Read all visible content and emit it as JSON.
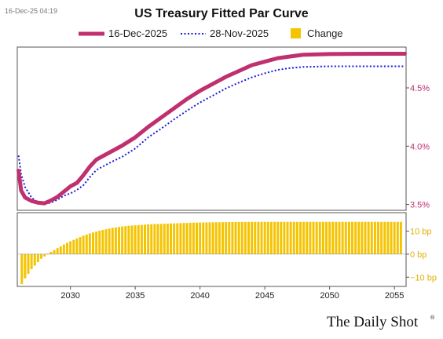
{
  "timestamp": "16-Dec-25 04:19",
  "brand": {
    "text": "The Daily Shot",
    "mark": "®"
  },
  "colors": {
    "current": "#c0306e",
    "prior": "#1a1adb",
    "change": "#f5c400",
    "axis_top": "#c0306e",
    "axis_bottom": "#e0b000"
  },
  "chart_data": {
    "type": "line",
    "title": "US Treasury Fitted Par Curve",
    "x_ticks": [
      2030,
      2035,
      2040,
      2045,
      2050,
      2055
    ],
    "xlim": [
      2025.9,
      2055.9
    ],
    "legend_position": "top",
    "panels": [
      {
        "name": "yields",
        "ylim": [
          3.45,
          4.85
        ],
        "y_ticks": [
          {
            "value": 3.5,
            "label": "3.5%"
          },
          {
            "value": 4.0,
            "label": "4.0%"
          },
          {
            "value": 4.5,
            "label": "4.5%"
          }
        ],
        "series": [
          {
            "name": "16-Dec-2025",
            "style": "solid",
            "x": [
              2026.0,
              2026.2,
              2026.5,
              2027.0,
              2027.5,
              2028.0,
              2028.5,
              2029.0,
              2029.5,
              2030.0,
              2030.5,
              2031.0,
              2031.5,
              2032.0,
              2033.0,
              2034.0,
              2035.0,
              2036.0,
              2037.0,
              2038.0,
              2039.0,
              2040.0,
              2041.0,
              2042.0,
              2043.0,
              2044.0,
              2045.0,
              2046.0,
              2047.0,
              2048.0,
              2050.0,
              2052.0,
              2054.0,
              2055.8
            ],
            "y": [
              3.79,
              3.62,
              3.56,
              3.53,
              3.515,
              3.51,
              3.535,
              3.565,
              3.61,
              3.655,
              3.685,
              3.75,
              3.825,
              3.885,
              3.945,
              4.005,
              4.075,
              4.165,
              4.245,
              4.325,
              4.405,
              4.475,
              4.535,
              4.595,
              4.645,
              4.695,
              4.725,
              4.755,
              4.77,
              4.785,
              4.79,
              4.792,
              4.793,
              4.793
            ]
          },
          {
            "name": "28-Nov-2025",
            "style": "dotted",
            "x": [
              2026.0,
              2026.2,
              2026.5,
              2027.0,
              2027.5,
              2028.0,
              2028.5,
              2029.0,
              2029.5,
              2030.0,
              2030.5,
              2031.0,
              2031.5,
              2032.0,
              2033.0,
              2034.0,
              2035.0,
              2036.0,
              2037.0,
              2038.0,
              2039.0,
              2040.0,
              2041.0,
              2042.0,
              2043.0,
              2044.0,
              2045.0,
              2046.0,
              2047.0,
              2048.0,
              2050.0,
              2052.0,
              2054.0,
              2055.8
            ],
            "y": [
              3.92,
              3.76,
              3.65,
              3.56,
              3.515,
              3.505,
              3.515,
              3.54,
              3.575,
              3.595,
              3.625,
              3.665,
              3.735,
              3.795,
              3.855,
              3.91,
              3.98,
              4.075,
              4.15,
              4.23,
              4.305,
              4.375,
              4.435,
              4.495,
              4.545,
              4.59,
              4.625,
              4.655,
              4.67,
              4.68,
              4.685,
              4.685,
              4.685,
              4.685
            ]
          }
        ]
      },
      {
        "name": "change",
        "unit": "bp",
        "ylim": [
          -14,
          18
        ],
        "y_ticks": [
          {
            "value": 10,
            "label": "10 bp"
          },
          {
            "value": 0,
            "label": "0 bp"
          },
          {
            "value": -10,
            "label": "−10 bp"
          }
        ],
        "series": [
          {
            "name": "Change",
            "type": "bar",
            "x_start": 2026.25,
            "x_step": 0.25,
            "values": [
              -13,
              -10.5,
              -8.5,
              -6.5,
              -5,
              -3.5,
              -2,
              -1,
              0.3,
              1,
              1.8,
              2.6,
              3.4,
              4.2,
              4.9,
              5.6,
              6.2,
              6.8,
              7.4,
              8,
              8.5,
              9,
              9.4,
              9.8,
              10.2,
              10.5,
              10.8,
              11.1,
              11.4,
              11.6,
              11.8,
              12,
              12.15,
              12.3,
              12.4,
              12.5,
              12.6,
              12.7,
              12.8,
              12.9,
              13,
              13.05,
              13.1,
              13.15,
              13.2,
              13.25,
              13.3,
              13.35,
              13.4,
              13.45,
              13.5,
              13.55,
              13.6,
              13.65,
              13.7,
              13.72,
              13.74,
              13.76,
              13.78,
              13.8,
              13.82,
              13.84,
              13.86,
              13.88,
              13.9,
              13.92,
              13.94,
              13.95,
              13.96,
              13.97,
              13.98,
              13.99,
              14,
              14,
              14,
              14,
              14,
              14,
              14,
              14,
              14,
              14,
              14,
              14,
              14,
              14,
              14,
              14,
              14,
              14,
              14,
              14,
              14,
              14,
              14,
              14,
              14,
              14,
              14,
              14,
              14,
              14,
              14,
              14,
              14,
              14,
              14,
              14,
              14,
              14,
              14,
              14,
              14,
              14,
              14,
              14,
              14,
              14
            ]
          }
        ]
      }
    ]
  }
}
